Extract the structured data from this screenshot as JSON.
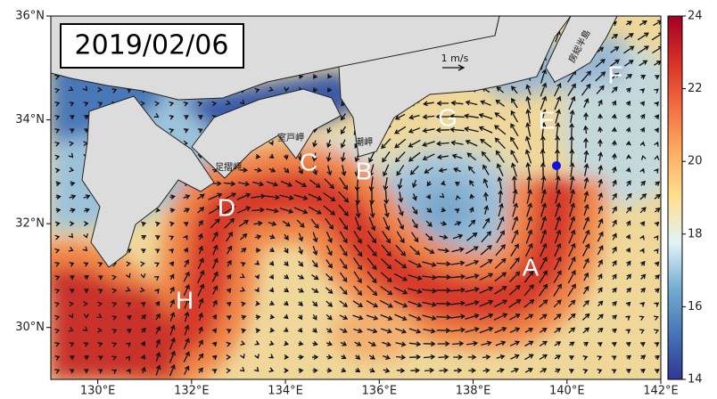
{
  "map": {
    "title": "2019/02/06",
    "lonlim": [
      129,
      142
    ],
    "latlim": [
      29,
      36
    ],
    "xticks": [
      {
        "value": 130,
        "label": "130°E"
      },
      {
        "value": 132,
        "label": "132°E"
      },
      {
        "value": 134,
        "label": "134°E"
      },
      {
        "value": 136,
        "label": "136°E"
      },
      {
        "value": 138,
        "label": "138°E"
      },
      {
        "value": 140,
        "label": "140°E"
      },
      {
        "value": 142,
        "label": "142°E"
      }
    ],
    "yticks": [
      {
        "value": 30,
        "label": "30°N"
      },
      {
        "value": 32,
        "label": "32°N"
      },
      {
        "value": 34,
        "label": "34°N"
      },
      {
        "value": 36,
        "label": "36°N"
      }
    ],
    "colorbar": {
      "lim": [
        14,
        24
      ],
      "ticks": [
        14,
        16,
        18,
        20,
        22,
        24
      ],
      "colors": [
        "#313695",
        "#4575b4",
        "#74add1",
        "#e0f3f8",
        "#fee090",
        "#fdae61",
        "#f46d43",
        "#d73027",
        "#a50026"
      ]
    },
    "region_labels": [
      "A",
      "B",
      "C",
      "D",
      "E",
      "F",
      "G",
      "H"
    ],
    "place_labels": [
      "足摺岬",
      "室戸岬",
      "潮岬",
      "房総半島"
    ],
    "scale_label": "1 m/s"
  }
}
